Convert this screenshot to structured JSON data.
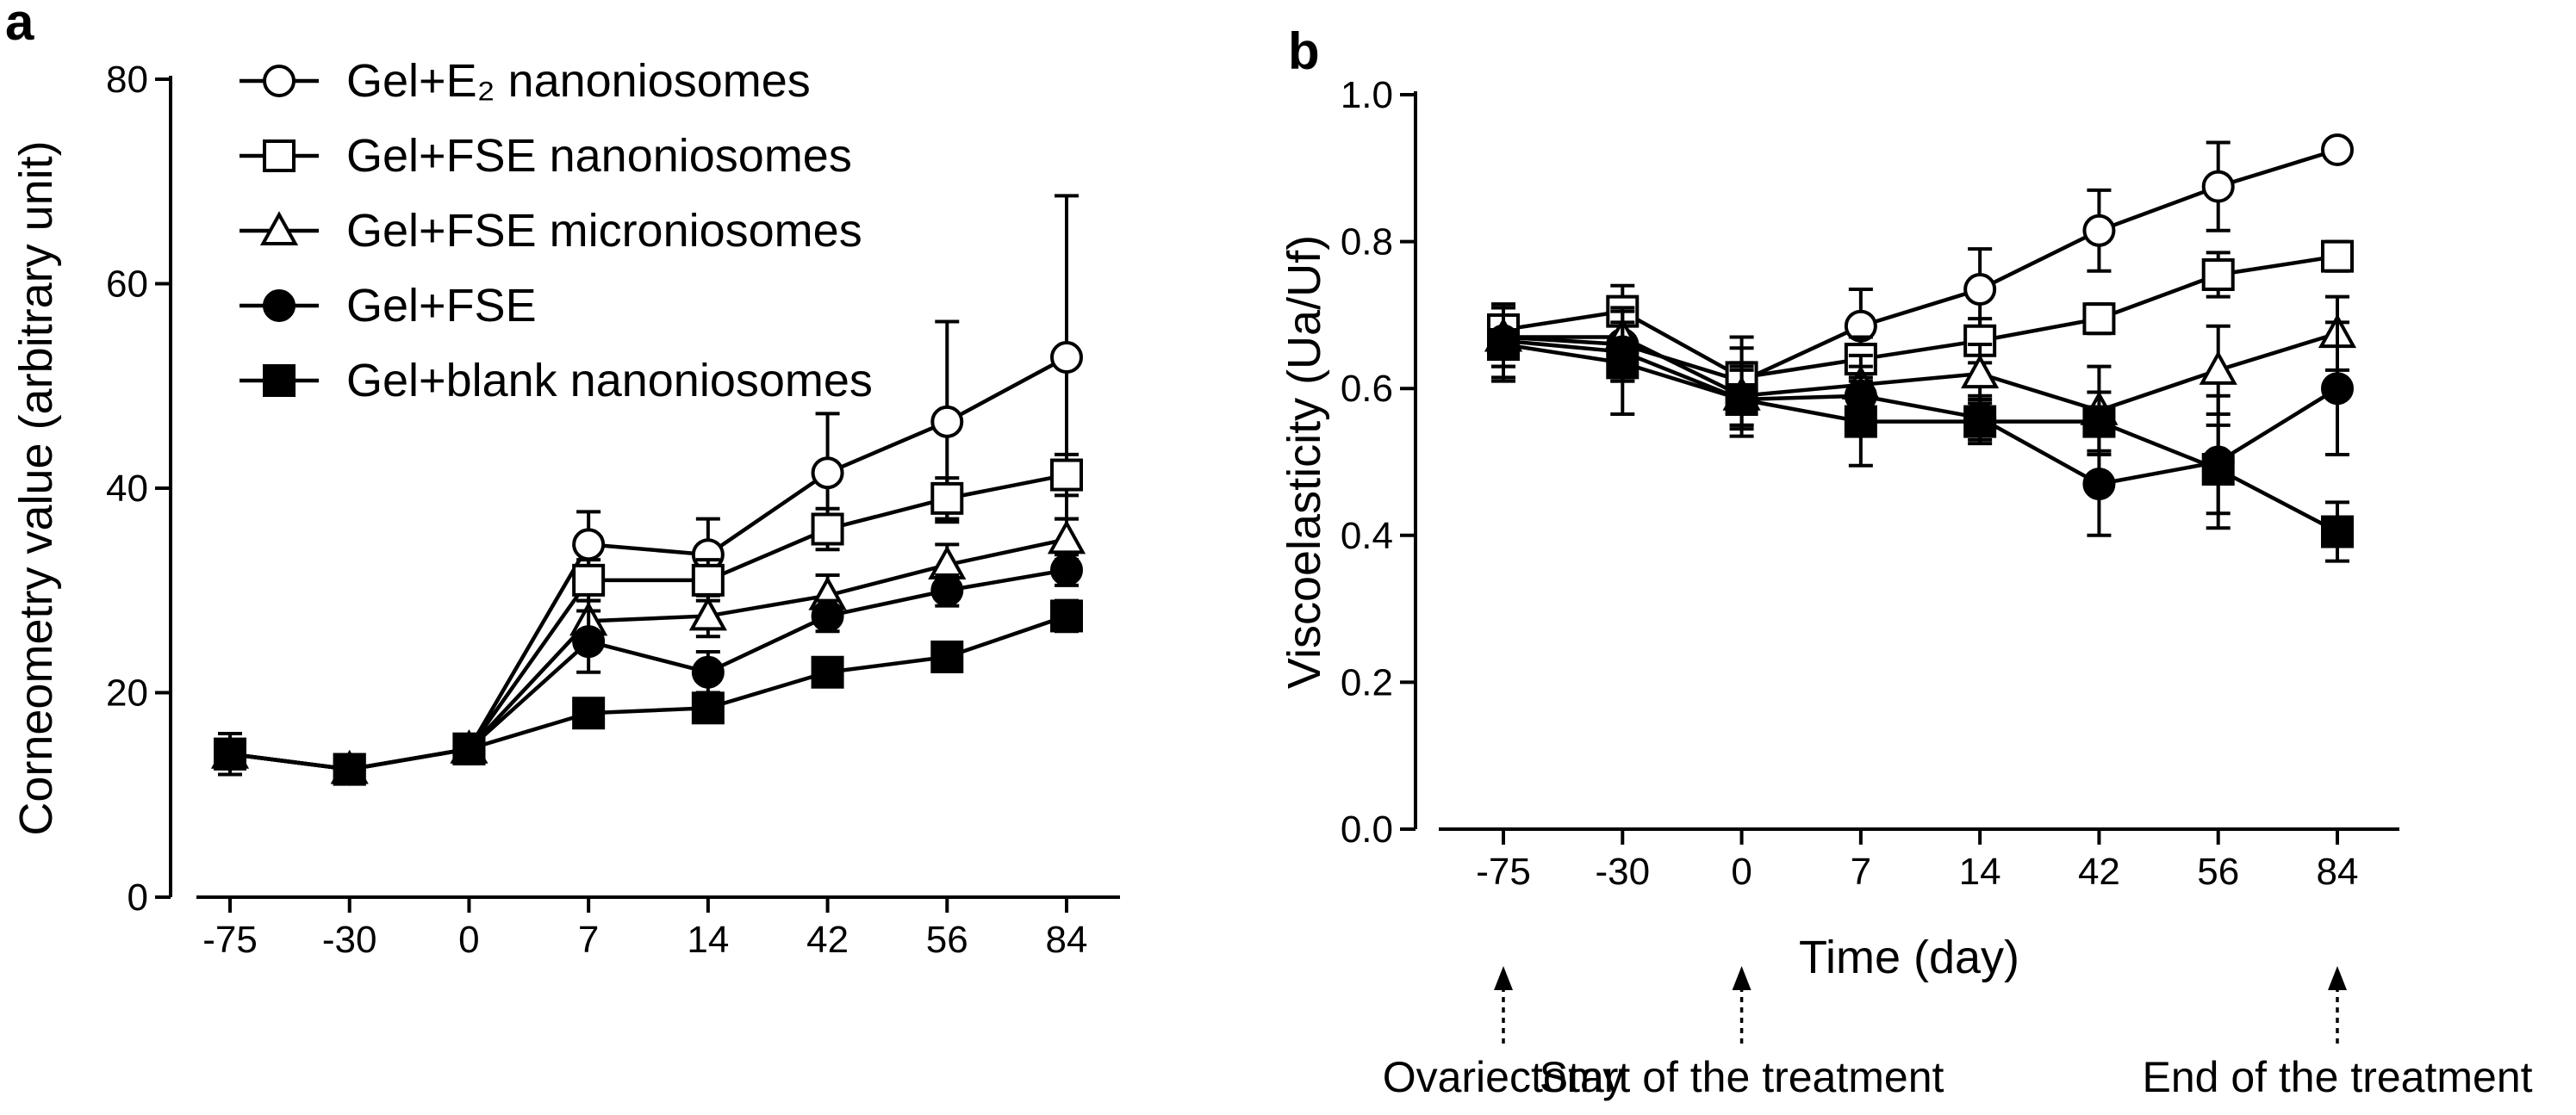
{
  "chart_data": [
    {
      "panel": "a",
      "type": "line",
      "categories": [
        "-75",
        "-30",
        "0",
        "7",
        "14",
        "42",
        "56",
        "84"
      ],
      "ylabel": "Corneometry value (arbitrary unit)",
      "xlabel": "",
      "ylim": [
        0,
        80
      ],
      "yticks": [
        "0",
        "20",
        "40",
        "60",
        "80"
      ],
      "legend_position": "top-left",
      "series": [
        {
          "name": "Gel+E₂ nanoniosomes",
          "marker": "open-circle",
          "values": [
            14,
            12.5,
            14.5,
            34.5,
            33.5,
            41.5,
            46.5,
            52.8
          ],
          "errors": [
            2,
            1,
            1,
            3.2,
            3.5,
            5.8,
            9.8,
            15.8
          ]
        },
        {
          "name": "Gel+FSE nanoniosomes",
          "marker": "open-square",
          "values": [
            14,
            12.5,
            14.5,
            31,
            31,
            36,
            39,
            41.3
          ],
          "errors": [
            2,
            1,
            1,
            2,
            2,
            2,
            2,
            2
          ]
        },
        {
          "name": "Gel+FSE microniosomes",
          "marker": "open-triangle",
          "values": [
            14,
            12.5,
            14.5,
            27,
            27.5,
            29.5,
            32.5,
            35
          ],
          "errors": [
            2,
            1,
            1,
            2,
            2,
            2,
            2,
            2
          ]
        },
        {
          "name": "Gel+FSE",
          "marker": "filled-circle",
          "values": [
            14,
            12.5,
            14.5,
            25,
            22,
            27.5,
            30,
            32
          ],
          "errors": [
            2,
            1,
            1,
            3,
            2,
            1.5,
            1.5,
            1.5
          ]
        },
        {
          "name": "Gel+blank nanoniosomes",
          "marker": "filled-square",
          "values": [
            14,
            12.5,
            14.5,
            18,
            18.5,
            22,
            23.5,
            27.5
          ],
          "errors": [
            2,
            1,
            1,
            1,
            1,
            1,
            1,
            1.5
          ]
        }
      ]
    },
    {
      "panel": "b",
      "type": "line",
      "categories": [
        "-75",
        "-30",
        "0",
        "7",
        "14",
        "42",
        "56",
        "84"
      ],
      "ylabel": "Viscoelasticity (Ua/Uf)",
      "xlabel": "Time (day)",
      "ylim": [
        0,
        1.0
      ],
      "yticks": [
        "0.0",
        "0.2",
        "0.4",
        "0.6",
        "0.8",
        "1.0"
      ],
      "series": [
        {
          "name": "Gel+E₂ nanoniosomes",
          "marker": "open-circle",
          "values": [
            0.67,
            0.66,
            0.61,
            0.685,
            0.735,
            0.815,
            0.875,
            0.925
          ],
          "errors": [
            0.04,
            0.05,
            0.06,
            0.05,
            0.055,
            0.055,
            0.06,
            0.01
          ]
        },
        {
          "name": "Gel+FSE nanoniosomes",
          "marker": "open-square",
          "values": [
            0.68,
            0.705,
            0.615,
            0.64,
            0.665,
            0.695,
            0.755,
            0.78
          ],
          "errors": [
            0.03,
            0.035,
            0.04,
            0.03,
            0.03,
            0.02,
            0.03,
            0.02
          ]
        },
        {
          "name": "Gel+FSE microniosomes",
          "marker": "open-triangle",
          "values": [
            0.67,
            0.67,
            0.59,
            0.605,
            0.62,
            0.57,
            0.625,
            0.675
          ],
          "errors": [
            0.04,
            0.04,
            0.04,
            0.04,
            0.04,
            0.06,
            0.06,
            0.05
          ]
        },
        {
          "name": "Gel+FSE",
          "marker": "filled-circle",
          "values": [
            0.665,
            0.65,
            0.585,
            0.59,
            0.56,
            0.47,
            0.5,
            0.6
          ],
          "errors": [
            0.05,
            0.04,
            0.04,
            0.04,
            0.03,
            0.07,
            0.09,
            0.09
          ]
        },
        {
          "name": "Gel+blank nanoniosomes",
          "marker": "filled-square",
          "values": [
            0.66,
            0.635,
            0.585,
            0.555,
            0.555,
            0.555,
            0.49,
            0.405
          ],
          "errors": [
            0.05,
            0.07,
            0.05,
            0.06,
            0.03,
            0.04,
            0.06,
            0.04
          ]
        }
      ],
      "annotations": [
        {
          "category": "-75",
          "label": "Ovariectomy"
        },
        {
          "category": "0",
          "label": "Start of the treatment"
        },
        {
          "category": "84",
          "label": "End of the treatment"
        }
      ]
    }
  ]
}
